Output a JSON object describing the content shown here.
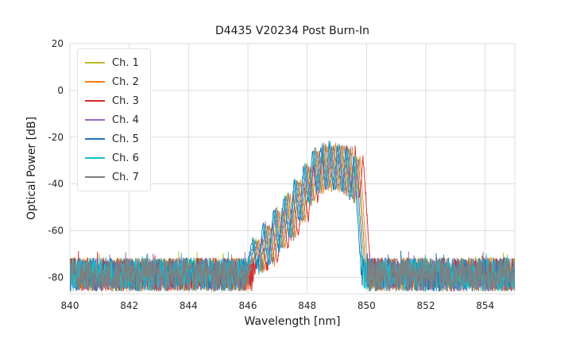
{
  "chart_data": {
    "type": "line",
    "title": "D4435 V20234 Post Burn-In",
    "xlabel": "Wavelength [nm]",
    "ylabel": "Optical Power [dB]",
    "xlim": [
      840,
      855
    ],
    "ylim": [
      -87,
      20
    ],
    "xticks": [
      840,
      842,
      844,
      846,
      848,
      850,
      852,
      854
    ],
    "yticks": [
      20,
      0,
      -20,
      -40,
      -60,
      -80
    ],
    "grid": true,
    "grid_color": "#dcdcdc",
    "background_color": "#ffffff",
    "legend_position": "upper left",
    "noise_floor_db": [
      -86,
      -71.5
    ],
    "sample_step_nm": 0.01,
    "signal_envelope": {
      "x": [
        845.95,
        846.3,
        846.47,
        846.65,
        846.82,
        847.0,
        847.17,
        847.35,
        847.52,
        847.7,
        847.86,
        848.02,
        848.17,
        848.32,
        848.46,
        848.6,
        848.74,
        848.88,
        849.02,
        849.16,
        849.3,
        849.44,
        849.58,
        849.7,
        849.82,
        849.92,
        850.0
      ],
      "y": [
        -85,
        -64,
        -78,
        -57,
        -74,
        -51,
        -68,
        -45,
        -63,
        -39,
        -56,
        -32,
        -48,
        -25.5,
        -43,
        -23.5,
        -42,
        -23,
        -42.5,
        -23.5,
        -44,
        -25,
        -47,
        -28.5,
        -50,
        -70,
        -85
      ]
    },
    "series": [
      {
        "name": "Ch. 1",
        "color": "#bcbd22",
        "dx_nm": -0.02
      },
      {
        "name": "Ch. 2",
        "color": "#ff7f0e",
        "dx_nm": 0.08
      },
      {
        "name": "Ch. 3",
        "color": "#d62728",
        "dx_nm": 0.18
      },
      {
        "name": "Ch. 4",
        "color": "#9467bd",
        "dx_nm": -0.06
      },
      {
        "name": "Ch. 5",
        "color": "#1f77b4",
        "dx_nm": -0.14
      },
      {
        "name": "Ch. 6",
        "color": "#17becf",
        "dx_nm": -0.1
      },
      {
        "name": "Ch. 7",
        "color": "#7f7f7f",
        "dx_nm": 0.02
      }
    ]
  }
}
